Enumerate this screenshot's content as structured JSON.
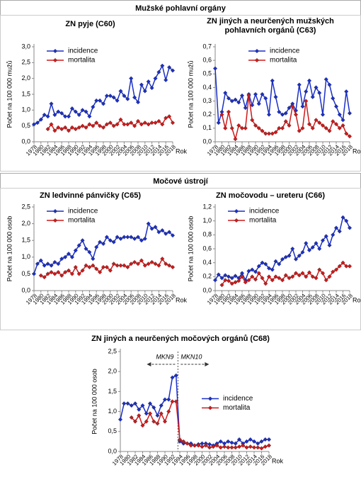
{
  "sections": [
    {
      "title": "Mužské pohlavní orgány"
    },
    {
      "title": "Močové ústrojí"
    }
  ],
  "chart_data": [
    {
      "type": "line",
      "title": "ZN pyje (C60)",
      "ylabel": "Počet na 100 000 mužů",
      "xlabel": "Rok",
      "legend": "upper left",
      "x": [
        1978,
        1979,
        1980,
        1981,
        1982,
        1983,
        1984,
        1985,
        1986,
        1987,
        1988,
        1989,
        1990,
        1991,
        1992,
        1993,
        1994,
        1995,
        1996,
        1997,
        1998,
        1999,
        2000,
        2001,
        2002,
        2003,
        2004,
        2005,
        2006,
        2007,
        2008,
        2009,
        2010,
        2011,
        2012,
        2013,
        2014,
        2015,
        2016,
        2017,
        2018
      ],
      "xlim": [
        1978,
        2018
      ],
      "xticks": [
        1978,
        1980,
        1982,
        1984,
        1986,
        1988,
        1990,
        1992,
        1994,
        1996,
        1998,
        2000,
        2002,
        2004,
        2006,
        2008,
        2010,
        2012,
        2014,
        2016,
        2018
      ],
      "ylim": [
        0,
        3
      ],
      "yticks": [
        {
          "value": 0,
          "label": "0,0"
        },
        {
          "value": 0.5,
          "label": "0,5"
        },
        {
          "value": 1,
          "label": "1,0"
        },
        {
          "value": 1.5,
          "label": "1,5"
        },
        {
          "value": 2,
          "label": "2,0"
        },
        {
          "value": 2.5,
          "label": "2,5"
        },
        {
          "value": 3,
          "label": "3,0"
        }
      ],
      "series": [
        {
          "name": "incidence",
          "color": "#1a2fc8",
          "values": [
            0.55,
            0.6,
            0.7,
            0.85,
            0.8,
            1.2,
            0.85,
            0.95,
            0.9,
            0.8,
            0.8,
            1.05,
            0.95,
            0.85,
            1.0,
            0.95,
            0.8,
            1.1,
            1.3,
            1.3,
            1.2,
            1.45,
            1.45,
            1.4,
            1.3,
            1.6,
            1.45,
            1.35,
            2.0,
            1.4,
            1.25,
            1.8,
            1.6,
            1.9,
            1.7,
            2.0,
            2.2,
            2.4,
            1.95,
            2.35,
            2.25
          ]
        },
        {
          "name": "mortalita",
          "color": "#d01818",
          "values": [
            null,
            null,
            null,
            null,
            0.4,
            0.55,
            0.35,
            0.45,
            0.4,
            0.45,
            0.35,
            0.45,
            0.4,
            0.45,
            0.5,
            0.45,
            0.55,
            0.5,
            0.6,
            0.5,
            0.45,
            0.55,
            0.6,
            0.5,
            0.55,
            0.7,
            0.55,
            0.55,
            0.6,
            0.5,
            0.65,
            0.55,
            0.6,
            0.55,
            0.6,
            0.6,
            0.65,
            0.55,
            0.75,
            0.8,
            0.6
          ]
        }
      ]
    },
    {
      "type": "line",
      "title": "ZN jiných a neurčených mužských pohlavních orgánů (C63)",
      "ylabel": "Počet na 100 000 mužů",
      "xlabel": "Rok",
      "legend": "upper center",
      "x": [
        1978,
        1979,
        1980,
        1981,
        1982,
        1983,
        1984,
        1985,
        1986,
        1987,
        1988,
        1989,
        1990,
        1991,
        1992,
        1993,
        1994,
        1995,
        1996,
        1997,
        1998,
        1999,
        2000,
        2001,
        2002,
        2003,
        2004,
        2005,
        2006,
        2007,
        2008,
        2009,
        2010,
        2011,
        2012,
        2013,
        2014,
        2015,
        2016,
        2017,
        2018
      ],
      "xlim": [
        1978,
        2018
      ],
      "xticks": [
        1978,
        1980,
        1982,
        1984,
        1986,
        1988,
        1990,
        1992,
        1994,
        1996,
        1998,
        2000,
        2002,
        2004,
        2006,
        2008,
        2010,
        2012,
        2014,
        2016,
        2018
      ],
      "ylim": [
        0,
        0.7
      ],
      "yticks": [
        {
          "value": 0,
          "label": "0,0"
        },
        {
          "value": 0.1,
          "label": "0,1"
        },
        {
          "value": 0.2,
          "label": "0,2"
        },
        {
          "value": 0.3,
          "label": "0,3"
        },
        {
          "value": 0.4,
          "label": "0,4"
        },
        {
          "value": 0.5,
          "label": "0,5"
        },
        {
          "value": 0.6,
          "label": "0,6"
        },
        {
          "value": 0.7,
          "label": "0,7"
        }
      ],
      "series": [
        {
          "name": "incidence",
          "color": "#1a2fc8",
          "values": [
            0.54,
            0.14,
            0.22,
            0.36,
            0.32,
            0.3,
            0.31,
            0.29,
            0.34,
            0.25,
            0.35,
            0.27,
            0.35,
            0.28,
            0.35,
            0.32,
            0.2,
            0.45,
            0.33,
            0.22,
            0.2,
            0.21,
            0.25,
            0.28,
            0.23,
            0.42,
            0.26,
            0.37,
            0.45,
            0.33,
            0.4,
            0.36,
            0.2,
            0.46,
            0.42,
            0.32,
            0.26,
            0.2,
            0.16,
            0.37,
            0.21
          ]
        },
        {
          "name": "mortalita",
          "color": "#d01818",
          "values": [
            null,
            null,
            0.2,
            0.1,
            0.22,
            0.1,
            0.02,
            0.12,
            0.1,
            0.1,
            0.34,
            0.16,
            0.12,
            0.1,
            0.08,
            0.06,
            0.06,
            0.06,
            0.07,
            0.1,
            0.1,
            0.15,
            0.12,
            0.26,
            0.2,
            0.08,
            0.1,
            0.3,
            0.13,
            0.1,
            0.16,
            0.14,
            0.12,
            0.1,
            0.08,
            0.15,
            0.13,
            0.1,
            0.12,
            0.06,
            0.04
          ]
        }
      ]
    },
    {
      "type": "line",
      "title": "ZN ledvinné pánvičky (C65)",
      "ylabel": "Počet na 100 000 osob",
      "xlabel": "Rok",
      "legend": "upper left",
      "x": [
        1978,
        1979,
        1980,
        1981,
        1982,
        1983,
        1984,
        1985,
        1986,
        1987,
        1988,
        1989,
        1990,
        1991,
        1992,
        1993,
        1994,
        1995,
        1996,
        1997,
        1998,
        1999,
        2000,
        2001,
        2002,
        2003,
        2004,
        2005,
        2006,
        2007,
        2008,
        2009,
        2010,
        2011,
        2012,
        2013,
        2014,
        2015,
        2016,
        2017,
        2018
      ],
      "xlim": [
        1978,
        2018
      ],
      "xticks": [
        1978,
        1980,
        1982,
        1984,
        1986,
        1988,
        1990,
        1992,
        1994,
        1996,
        1998,
        2000,
        2002,
        2004,
        2006,
        2008,
        2010,
        2012,
        2014,
        2016,
        2018
      ],
      "ylim": [
        0,
        2.5
      ],
      "yticks": [
        {
          "value": 0,
          "label": "0,0"
        },
        {
          "value": 0.5,
          "label": "0,5"
        },
        {
          "value": 1,
          "label": "1,0"
        },
        {
          "value": 1.5,
          "label": "1,5"
        },
        {
          "value": 2,
          "label": "2,0"
        },
        {
          "value": 2.5,
          "label": "2,5"
        }
      ],
      "series": [
        {
          "name": "incidence",
          "color": "#1a2fc8",
          "values": [
            0.5,
            0.8,
            0.9,
            0.75,
            0.8,
            0.75,
            0.85,
            0.8,
            0.95,
            1.0,
            1.1,
            1.0,
            1.2,
            1.35,
            1.5,
            1.25,
            1.15,
            0.95,
            1.3,
            1.45,
            1.4,
            1.6,
            1.5,
            1.45,
            1.6,
            1.55,
            1.6,
            1.6,
            1.6,
            1.55,
            1.6,
            1.5,
            1.55,
            2.0,
            1.85,
            1.9,
            1.75,
            1.8,
            1.7,
            1.75,
            1.65
          ]
        },
        {
          "name": "mortalita",
          "color": "#d01818",
          "values": [
            null,
            null,
            0.45,
            0.4,
            0.5,
            0.55,
            0.5,
            0.55,
            0.45,
            0.55,
            0.6,
            0.5,
            0.7,
            0.5,
            0.6,
            0.75,
            0.7,
            0.75,
            0.65,
            0.55,
            0.7,
            0.7,
            0.6,
            0.8,
            0.75,
            0.75,
            0.75,
            0.7,
            0.8,
            0.85,
            0.8,
            0.9,
            0.75,
            0.8,
            0.85,
            0.8,
            0.75,
            0.95,
            0.8,
            0.75,
            0.7
          ]
        }
      ]
    },
    {
      "type": "line",
      "title": "ZN močovodu – ureteru (C66)",
      "ylabel": "Počet na 100 000 osob",
      "xlabel": "Rok",
      "legend": "upper left",
      "x": [
        1978,
        1979,
        1980,
        1981,
        1982,
        1983,
        1984,
        1985,
        1986,
        1987,
        1988,
        1989,
        1990,
        1991,
        1992,
        1993,
        1994,
        1995,
        1996,
        1997,
        1998,
        1999,
        2000,
        2001,
        2002,
        2003,
        2004,
        2005,
        2006,
        2007,
        2008,
        2009,
        2010,
        2011,
        2012,
        2013,
        2014,
        2015,
        2016,
        2017,
        2018
      ],
      "xlim": [
        1978,
        2018
      ],
      "xticks": [
        1978,
        1980,
        1982,
        1984,
        1986,
        1988,
        1990,
        1992,
        1994,
        1996,
        1998,
        2000,
        2002,
        2004,
        2006,
        2008,
        2010,
        2012,
        2014,
        2016,
        2018
      ],
      "ylim": [
        0,
        1.2
      ],
      "yticks": [
        {
          "value": 0,
          "label": "0,0"
        },
        {
          "value": 0.2,
          "label": "0,2"
        },
        {
          "value": 0.4,
          "label": "0,4"
        },
        {
          "value": 0.6,
          "label": "0,6"
        },
        {
          "value": 0.8,
          "label": "0,8"
        },
        {
          "value": 1,
          "label": "1,0"
        },
        {
          "value": 1.2,
          "label": "1,2"
        }
      ],
      "series": [
        {
          "name": "incidence",
          "color": "#1a2fc8",
          "values": [
            0.15,
            0.23,
            0.18,
            0.22,
            0.2,
            0.18,
            0.21,
            0.18,
            0.25,
            0.15,
            0.28,
            0.3,
            0.27,
            0.35,
            0.4,
            0.38,
            0.32,
            0.3,
            0.42,
            0.38,
            0.45,
            0.48,
            0.5,
            0.6,
            0.45,
            0.5,
            0.55,
            0.68,
            0.58,
            0.62,
            0.68,
            0.6,
            0.72,
            0.78,
            0.65,
            0.8,
            0.9,
            0.85,
            1.05,
            1.0,
            0.9
          ]
        },
        {
          "name": "mortalita",
          "color": "#d01818",
          "values": [
            null,
            null,
            0.08,
            0.15,
            0.14,
            0.1,
            0.12,
            0.14,
            0.2,
            0.12,
            0.15,
            0.2,
            0.16,
            0.25,
            0.18,
            0.1,
            0.2,
            0.15,
            0.2,
            0.18,
            0.15,
            0.22,
            0.18,
            0.2,
            0.25,
            0.22,
            0.25,
            0.2,
            0.26,
            0.2,
            0.18,
            0.3,
            0.25,
            0.15,
            0.2,
            0.27,
            0.3,
            0.35,
            0.4,
            0.35,
            0.35
          ]
        }
      ]
    },
    {
      "type": "line",
      "title": "ZN jiných a neurčených močových orgánů (C68)",
      "ylabel": "Počet na 100 000 osob",
      "xlabel": "Rok",
      "legend": "center right",
      "divider": {
        "x": 1993.5,
        "left": "MKN9",
        "right": "MKN10"
      },
      "x": [
        1978,
        1979,
        1980,
        1981,
        1982,
        1983,
        1984,
        1985,
        1986,
        1987,
        1988,
        1989,
        1990,
        1991,
        1992,
        1993,
        1994,
        1995,
        1996,
        1997,
        1998,
        1999,
        2000,
        2001,
        2002,
        2003,
        2004,
        2005,
        2006,
        2007,
        2008,
        2009,
        2010,
        2011,
        2012,
        2013,
        2014,
        2015,
        2016,
        2017,
        2018
      ],
      "xlim": [
        1978,
        2018
      ],
      "xticks": [
        1978,
        1980,
        1982,
        1984,
        1986,
        1988,
        1990,
        1992,
        1994,
        1996,
        1998,
        2000,
        2002,
        2004,
        2006,
        2008,
        2010,
        2012,
        2014,
        2016,
        2018
      ],
      "ylim": [
        0,
        2.5
      ],
      "yticks": [
        {
          "value": 0,
          "label": "0,0"
        },
        {
          "value": 0.5,
          "label": "0,5"
        },
        {
          "value": 1,
          "label": "1,0"
        },
        {
          "value": 1.5,
          "label": "1,5"
        },
        {
          "value": 2,
          "label": "2,0"
        },
        {
          "value": 2.5,
          "label": "2,5"
        }
      ],
      "series": [
        {
          "name": "incidence",
          "color": "#1a2fc8",
          "values": [
            0.8,
            1.2,
            1.2,
            1.15,
            1.2,
            1.05,
            1.15,
            0.95,
            1.2,
            1.1,
            0.9,
            1.15,
            1.3,
            1.3,
            1.85,
            1.9,
            0.25,
            0.2,
            0.2,
            0.2,
            0.15,
            0.18,
            0.2,
            0.2,
            0.18,
            0.15,
            0.2,
            0.25,
            0.2,
            0.25,
            0.22,
            0.2,
            0.3,
            0.2,
            0.25,
            0.3,
            0.25,
            0.2,
            0.25,
            0.3,
            0.3
          ]
        },
        {
          "name": "mortalita",
          "color": "#d01818",
          "values": [
            null,
            null,
            null,
            0.85,
            0.75,
            0.9,
            0.65,
            0.75,
            0.95,
            0.75,
            0.7,
            0.95,
            0.75,
            1.0,
            1.25,
            1.25,
            0.3,
            0.25,
            0.2,
            0.15,
            0.15,
            0.15,
            0.12,
            0.15,
            0.1,
            0.12,
            0.15,
            0.1,
            0.12,
            0.1,
            0.1,
            0.1,
            0.12,
            0.15,
            0.1,
            0.12,
            0.1,
            0.1,
            0.08,
            0.12,
            0.15
          ]
        }
      ]
    }
  ]
}
